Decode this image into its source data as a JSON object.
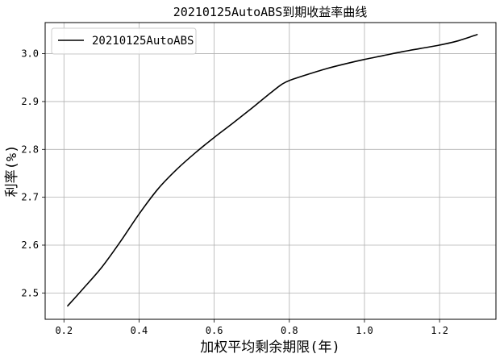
{
  "chart_data": {
    "type": "line",
    "title": "20210125AutoABS到期收益率曲线",
    "xlabel": "加权平均剩余期限(年)",
    "ylabel": "利率(%)",
    "xlim": [
      0.15,
      1.35
    ],
    "ylim": [
      2.445,
      3.065
    ],
    "xticks": [
      0.2,
      0.4,
      0.6,
      0.8,
      1.0,
      1.2
    ],
    "xtick_labels": [
      "0.2",
      "0.4",
      "0.6",
      "0.8",
      "1.0",
      "1.2"
    ],
    "yticks": [
      2.5,
      2.6,
      2.7,
      2.8,
      2.9,
      3.0
    ],
    "ytick_labels": [
      "2.5",
      "2.6",
      "2.7",
      "2.8",
      "2.9",
      "3.0"
    ],
    "grid": true,
    "legend_position": "top-left",
    "series": [
      {
        "name": "20210125AutoABS",
        "color": "#000000",
        "x": [
          0.21,
          0.25,
          0.3,
          0.35,
          0.4,
          0.45,
          0.5,
          0.55,
          0.6,
          0.65,
          0.7,
          0.75,
          0.78,
          0.8,
          0.85,
          0.9,
          0.95,
          1.0,
          1.05,
          1.1,
          1.15,
          1.2,
          1.25,
          1.3
        ],
        "y": [
          2.473,
          2.508,
          2.553,
          2.607,
          2.665,
          2.717,
          2.758,
          2.793,
          2.825,
          2.855,
          2.886,
          2.918,
          2.936,
          2.944,
          2.957,
          2.969,
          2.979,
          2.988,
          2.996,
          3.004,
          3.011,
          3.018,
          3.027,
          3.04
        ]
      }
    ]
  }
}
